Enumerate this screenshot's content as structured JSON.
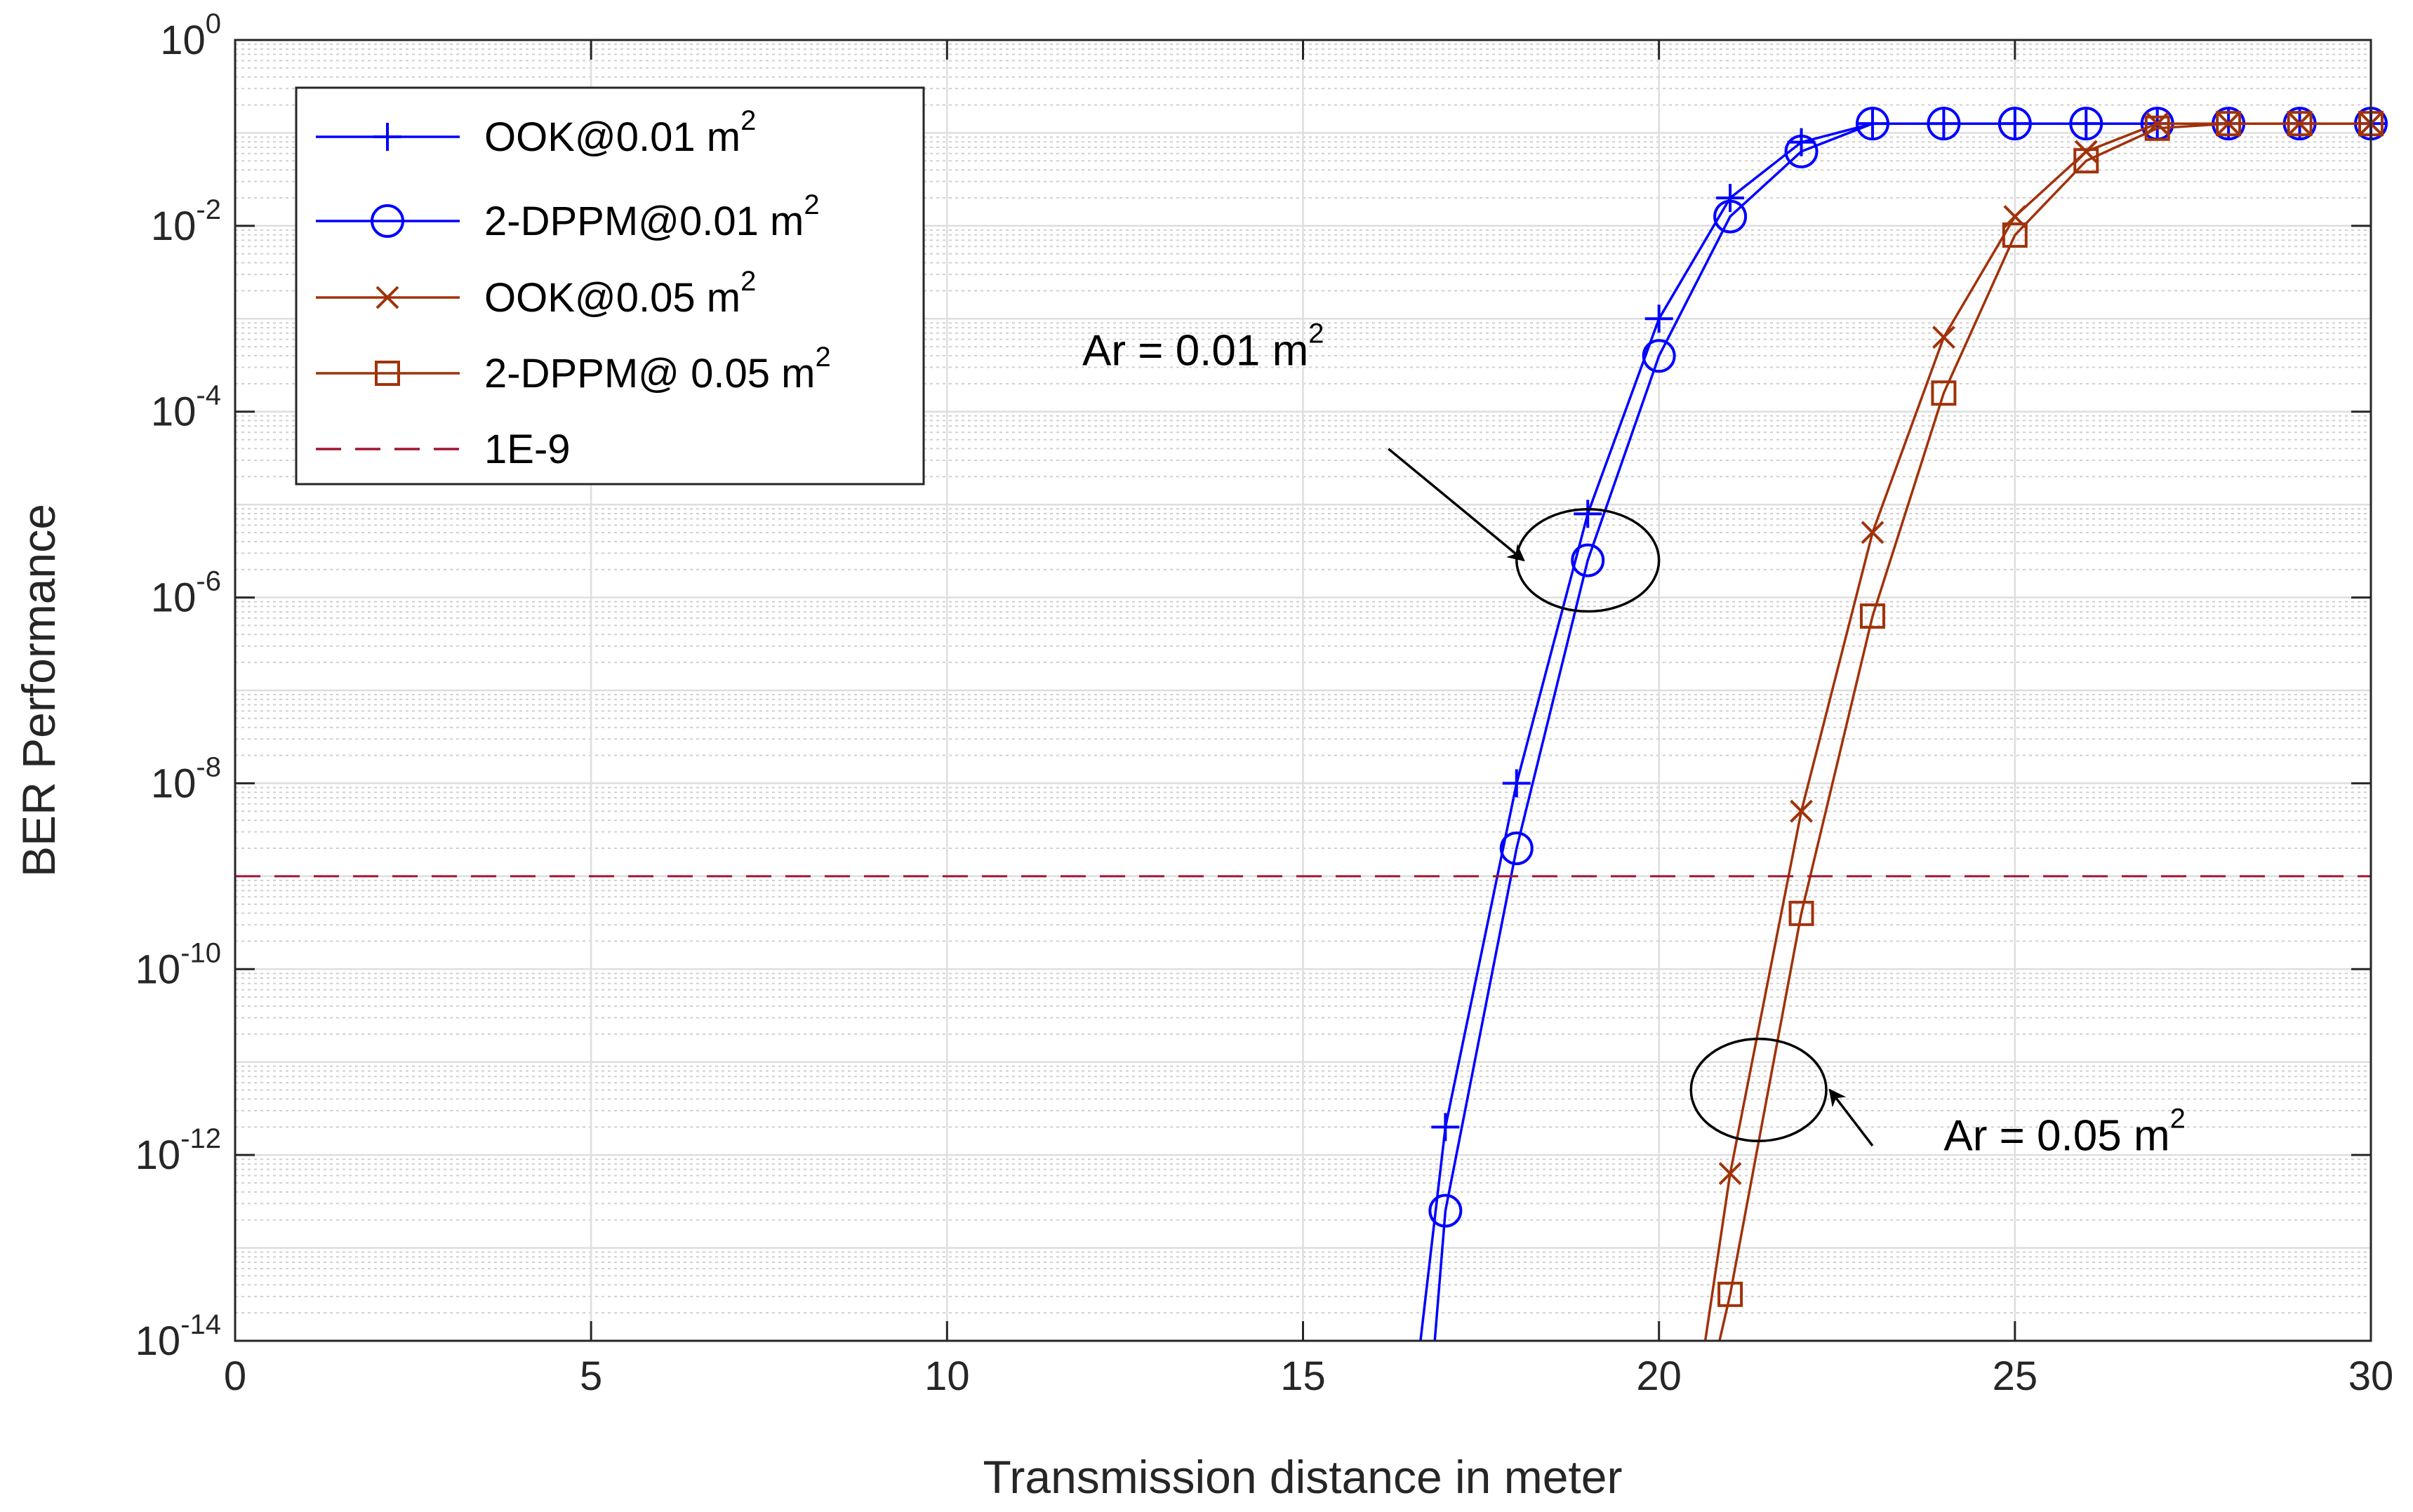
{
  "chart_data": {
    "type": "line",
    "title": "",
    "xlabel": "Transmission distance in meter",
    "ylabel": "BER Performance",
    "xlim": [
      0,
      30
    ],
    "ylim_log10": [
      -14,
      0
    ],
    "y_scale": "log",
    "grid": true,
    "x_ticks": [
      {
        "value": 0,
        "label": "0"
      },
      {
        "value": 5,
        "label": "5"
      },
      {
        "value": 10,
        "label": "10"
      },
      {
        "value": 15,
        "label": "15"
      },
      {
        "value": 20,
        "label": "20"
      },
      {
        "value": 25,
        "label": "25"
      },
      {
        "value": 30,
        "label": "30"
      }
    ],
    "y_ticks": [
      {
        "exp": 0,
        "base": "10",
        "sup": "0"
      },
      {
        "exp": -2,
        "base": "10",
        "sup": "-2"
      },
      {
        "exp": -4,
        "base": "10",
        "sup": "-4"
      },
      {
        "exp": -6,
        "base": "10",
        "sup": "-6"
      },
      {
        "exp": -8,
        "base": "10",
        "sup": "-8"
      },
      {
        "exp": -10,
        "base": "10",
        "sup": "-10"
      },
      {
        "exp": -12,
        "base": "10",
        "sup": "-12"
      },
      {
        "exp": -14,
        "base": "10",
        "sup": "-14"
      }
    ],
    "legend_position": "top-left",
    "series": [
      {
        "name": "OOK@0.01 m²",
        "legend_text": "OOK@0.01 m",
        "legend_sup": "2",
        "color": "#0000ff",
        "marker": "plus",
        "line": "solid",
        "x": [
          16.65,
          17,
          18,
          19,
          20,
          21,
          22,
          23,
          24,
          25,
          26,
          27,
          28,
          29,
          30
        ],
        "y_log10": [
          -14,
          -11.7,
          -8.0,
          -5.1,
          -3.0,
          -1.7,
          -1.1,
          -0.9,
          -0.9,
          -0.9,
          -0.9,
          -0.9,
          -0.9,
          -0.9,
          -0.9
        ],
        "marker_x": [
          17,
          18,
          19,
          20,
          21,
          22,
          23,
          24,
          25,
          26,
          27,
          28,
          29,
          30
        ],
        "marker_y_log10": [
          -11.7,
          -8.0,
          -5.1,
          -3.0,
          -1.7,
          -1.1,
          -0.9,
          -0.9,
          -0.9,
          -0.9,
          -0.9,
          -0.9,
          -0.9,
          -0.9
        ]
      },
      {
        "name": "2-DPPM@0.01 m²",
        "legend_text": "2-DPPM@0.01 m",
        "legend_sup": "2",
        "color": "#0000ff",
        "marker": "circle",
        "line": "solid",
        "x": [
          16.85,
          17,
          18,
          19,
          20,
          21,
          22,
          23,
          24,
          25,
          26,
          27,
          28,
          29,
          30
        ],
        "y_log10": [
          -14,
          -12.6,
          -8.7,
          -5.6,
          -3.4,
          -1.9,
          -1.2,
          -0.9,
          -0.9,
          -0.9,
          -0.9,
          -0.9,
          -0.9,
          -0.9,
          -0.9
        ],
        "marker_x": [
          17,
          18,
          19,
          20,
          21,
          22,
          23,
          24,
          25,
          26,
          27,
          28,
          29,
          30
        ],
        "marker_y_log10": [
          -12.6,
          -8.7,
          -5.6,
          -3.4,
          -1.9,
          -1.2,
          -0.9,
          -0.9,
          -0.9,
          -0.9,
          -0.9,
          -0.9,
          -0.9,
          -0.9
        ]
      },
      {
        "name": "OOK@0.05 m²",
        "legend_text": "OOK@0.05 m",
        "legend_sup": "2",
        "color": "#a0320a",
        "marker": "x",
        "line": "solid",
        "x": [
          20.65,
          21,
          22,
          23,
          24,
          25,
          26,
          27,
          28,
          29,
          30
        ],
        "y_log10": [
          -14,
          -12.2,
          -8.3,
          -5.3,
          -3.2,
          -1.9,
          -1.2,
          -0.9,
          -0.9,
          -0.9,
          -0.9
        ],
        "marker_x": [
          21,
          22,
          23,
          24,
          25,
          26,
          27,
          28,
          29,
          30
        ],
        "marker_y_log10": [
          -12.2,
          -8.3,
          -5.3,
          -3.2,
          -1.9,
          -1.2,
          -0.9,
          -0.9,
          -0.9,
          -0.9
        ]
      },
      {
        "name": "2-DPPM@ 0.05 m²",
        "legend_text": "2-DPPM@ 0.05 m",
        "legend_sup": "2",
        "color": "#a0320a",
        "marker": "square",
        "line": "solid",
        "x": [
          20.85,
          21,
          22,
          23,
          24,
          25,
          26,
          27,
          28,
          29,
          30
        ],
        "y_log10": [
          -14,
          -13.5,
          -9.4,
          -6.2,
          -3.8,
          -2.1,
          -1.3,
          -0.95,
          -0.9,
          -0.9,
          -0.9
        ],
        "marker_x": [
          21,
          22,
          23,
          24,
          25,
          26,
          27,
          28,
          29,
          30
        ],
        "marker_y_log10": [
          -13.5,
          -9.4,
          -6.2,
          -3.8,
          -2.1,
          -1.3,
          -0.95,
          -0.9,
          -0.9,
          -0.9
        ]
      },
      {
        "name": "1E-9",
        "legend_text": "1E-9",
        "legend_sup": "",
        "color": "#a2142f",
        "marker": "none",
        "line": "dashed",
        "x": [
          0,
          30
        ],
        "y_log10": [
          -9,
          -9
        ]
      }
    ],
    "annotations": [
      {
        "text": "Ar = 0.01 m",
        "sup": "2",
        "ellipse_center": [
          19,
          -5.6
        ],
        "ellipse_rx_data": 1.0,
        "ellipse_ry_log10": 0.55,
        "arrow_from": [
          16.2,
          -4.4
        ],
        "arrow_to": [
          18.1,
          -5.6
        ],
        "text_anchor_point": [
          11.9,
          -3.5
        ]
      },
      {
        "text": "Ar = 0.05 m",
        "sup": "2",
        "ellipse_center": [
          21.4,
          -11.3
        ],
        "ellipse_rx_data": 0.95,
        "ellipse_ry_log10": 0.55,
        "arrow_from": [
          23.0,
          -11.9
        ],
        "arrow_to": [
          22.4,
          -11.3
        ],
        "text_anchor_point": [
          24.0,
          -11.95
        ]
      }
    ]
  }
}
